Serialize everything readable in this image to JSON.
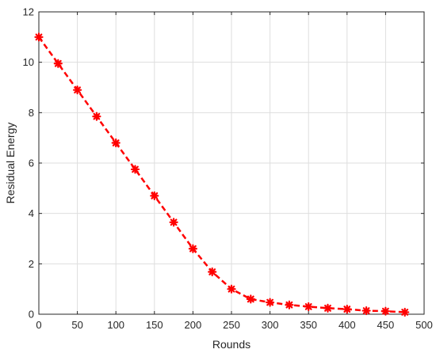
{
  "chart_data": {
    "type": "line",
    "title": "",
    "xlabel": "Rounds",
    "ylabel": "Residual Energy",
    "xlim": [
      0,
      500
    ],
    "ylim": [
      0,
      12
    ],
    "xticks": [
      0,
      50,
      100,
      150,
      200,
      250,
      300,
      350,
      400,
      450,
      500
    ],
    "yticks": [
      0,
      2,
      4,
      6,
      8,
      10,
      12
    ],
    "grid": true,
    "legend": "none",
    "series": [
      {
        "color": "#ff0000",
        "line_style": "dashed",
        "marker": "asterisk",
        "x": [
          0,
          25,
          50,
          75,
          100,
          125,
          150,
          175,
          200,
          225,
          250,
          275,
          300,
          325,
          350,
          375,
          400,
          425,
          450,
          475
        ],
        "y": [
          11.0,
          9.95,
          8.9,
          7.85,
          6.8,
          5.75,
          4.7,
          3.65,
          2.6,
          1.68,
          1.0,
          0.6,
          0.47,
          0.37,
          0.3,
          0.24,
          0.2,
          0.14,
          0.12,
          0.08
        ]
      }
    ]
  }
}
